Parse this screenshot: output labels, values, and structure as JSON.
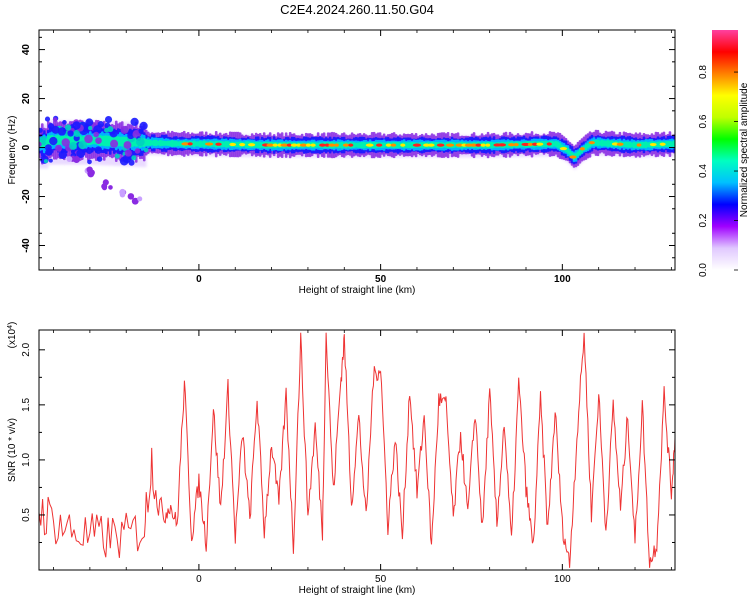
{
  "chart_data": [
    {
      "type": "heatmap",
      "title": "C2E4.2024.260.11.50.G04",
      "xlabel": "Height of straight line (km)",
      "ylabel": "Frequency (Hz)",
      "xlim": [
        -44,
        131
      ],
      "ylim": [
        -50,
        48
      ],
      "xticks": [
        0,
        50,
        100
      ],
      "yticks": [
        -40,
        -20,
        0,
        20,
        40
      ],
      "colorbar": {
        "label": "Normalized spectral amplitude",
        "range": [
          0.0,
          0.97
        ],
        "ticks": [
          "0.0",
          "0.2",
          "0.4",
          "0.6",
          "0.8"
        ],
        "colormap": [
          "#ffffff",
          "#e0c8ff",
          "#a000ff",
          "#0000ff",
          "#00c0ff",
          "#00ffc0",
          "#00ff00",
          "#c0ff00",
          "#ffff00",
          "#ff8000",
          "#ff0000",
          "#ff40a0"
        ]
      },
      "ridge": {
        "description_free": true,
        "points": [
          {
            "x": -42,
            "f": 3.0
          },
          {
            "x": -30,
            "f": 3.0
          },
          {
            "x": -15,
            "f": 2.0
          },
          {
            "x": -5,
            "f": 1.5
          },
          {
            "x": 0,
            "f": 1.5
          },
          {
            "x": 20,
            "f": 1.0
          },
          {
            "x": 50,
            "f": 1.0
          },
          {
            "x": 80,
            "f": 1.0
          },
          {
            "x": 98,
            "f": 1.5
          },
          {
            "x": 101,
            "f": -1.0
          },
          {
            "x": 103,
            "f": -4.0
          },
          {
            "x": 105,
            "f": -1.0
          },
          {
            "x": 108,
            "f": 2.0
          },
          {
            "x": 120,
            "f": 1.0
          },
          {
            "x": 131,
            "f": 1.5
          }
        ],
        "branch": [
          {
            "x": -35,
            "f": -5
          },
          {
            "x": -30,
            "f": -10
          },
          {
            "x": -25,
            "f": -15
          },
          {
            "x": -20,
            "f": -19
          },
          {
            "x": -17,
            "f": -22
          }
        ]
      }
    },
    {
      "type": "line",
      "xlabel": "Height of straight line (km)",
      "ylabel": "SNR (10 * v/v)",
      "y_multiplier": "(x10",
      "y_multiplier_exp": "4",
      "y_multiplier_close": ")",
      "xlim": [
        -44,
        131
      ],
      "ylim": [
        0,
        2.18
      ],
      "xticks": [
        0,
        50,
        100
      ],
      "yticks": [
        "0.5",
        "1.0",
        "1.5",
        "2.0"
      ],
      "series": [
        {
          "color": "#ee3333",
          "points": [
            [
              -44,
              0.55
            ],
            [
              -40,
              0.45
            ],
            [
              -35,
              0.35
            ],
            [
              -30,
              0.3
            ],
            [
              -25,
              0.3
            ],
            [
              -20,
              0.3
            ],
            [
              -15,
              0.4
            ],
            [
              -13,
              1.0
            ],
            [
              -10,
              0.45
            ],
            [
              -8,
              0.6
            ],
            [
              -6,
              0.4
            ],
            [
              -4,
              1.7
            ],
            [
              -2,
              0.3
            ],
            [
              0,
              0.8
            ],
            [
              2,
              0.25
            ],
            [
              4,
              1.45
            ],
            [
              6,
              0.55
            ],
            [
              8,
              1.65
            ],
            [
              10,
              0.3
            ],
            [
              12,
              1.25
            ],
            [
              14,
              0.45
            ],
            [
              16,
              1.55
            ],
            [
              18,
              0.35
            ],
            [
              20,
              1.15
            ],
            [
              22,
              0.6
            ],
            [
              24,
              1.6
            ],
            [
              26,
              0.2
            ],
            [
              28,
              2.1
            ],
            [
              30,
              0.5
            ],
            [
              32,
              1.3
            ],
            [
              34,
              0.35
            ],
            [
              35,
              2.15
            ],
            [
              37,
              0.7
            ],
            [
              39,
              1.7
            ],
            [
              40,
              2.1
            ],
            [
              42,
              0.6
            ],
            [
              44,
              1.4
            ],
            [
              46,
              0.45
            ],
            [
              48,
              1.75
            ],
            [
              50,
              1.85
            ],
            [
              52,
              0.4
            ],
            [
              54,
              1.2
            ],
            [
              56,
              0.3
            ],
            [
              58,
              1.65
            ],
            [
              60,
              0.7
            ],
            [
              62,
              1.4
            ],
            [
              64,
              0.2
            ],
            [
              66,
              1.55
            ],
            [
              68,
              1.5
            ],
            [
              70,
              0.45
            ],
            [
              72,
              1.25
            ],
            [
              74,
              0.5
            ],
            [
              76,
              1.45
            ],
            [
              78,
              0.35
            ],
            [
              80,
              1.6
            ],
            [
              82,
              0.4
            ],
            [
              84,
              1.35
            ],
            [
              86,
              0.25
            ],
            [
              88,
              1.7
            ],
            [
              90,
              0.75
            ],
            [
              92,
              0.2
            ],
            [
              94,
              1.55
            ],
            [
              96,
              0.35
            ],
            [
              98,
              1.45
            ],
            [
              100,
              0.4
            ],
            [
              102,
              0.05
            ],
            [
              104,
              1.2
            ],
            [
              106,
              2.15
            ],
            [
              108,
              0.5
            ],
            [
              110,
              1.6
            ],
            [
              112,
              0.35
            ],
            [
              114,
              1.5
            ],
            [
              116,
              0.55
            ],
            [
              118,
              1.4
            ],
            [
              120,
              0.25
            ],
            [
              122,
              1.5
            ],
            [
              124,
              0.05
            ],
            [
              126,
              0.25
            ],
            [
              128,
              1.6
            ],
            [
              130,
              0.7
            ],
            [
              131,
              1.2
            ]
          ]
        }
      ]
    }
  ]
}
